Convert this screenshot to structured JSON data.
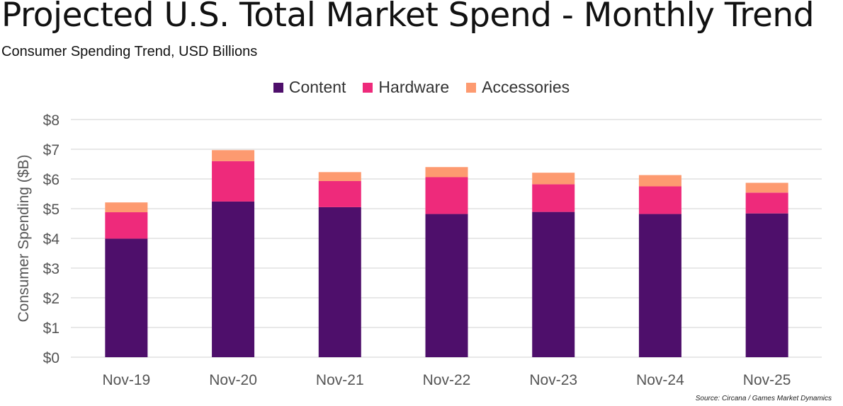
{
  "chart_data": {
    "type": "bar",
    "stacked": true,
    "title": "Projected U.S. Total Market Spend - Monthly Trend",
    "subtitle": "Consumer Spending Trend, USD Billions",
    "ylabel": "Consumer Spending ($B)",
    "xlabel": "",
    "ylim": [
      0,
      8
    ],
    "yticks": [
      "$0",
      "$1",
      "$2",
      "$3",
      "$4",
      "$5",
      "$6",
      "$7",
      "$8"
    ],
    "grid": true,
    "legend_position": "top",
    "categories": [
      "Nov-19",
      "Nov-20",
      "Nov-21",
      "Nov-22",
      "Nov-23",
      "Nov-24",
      "Nov-25"
    ],
    "series": [
      {
        "name": "Content",
        "color": "#4e0f6b",
        "values": [
          3.99,
          5.24,
          5.05,
          4.82,
          4.89,
          4.82,
          4.84
        ]
      },
      {
        "name": "Hardware",
        "color": "#ee2a7b",
        "values": [
          0.89,
          1.36,
          0.88,
          1.24,
          0.93,
          0.93,
          0.7
        ]
      },
      {
        "name": "Accessories",
        "color": "#fd9a70",
        "values": [
          0.33,
          0.37,
          0.3,
          0.34,
          0.39,
          0.38,
          0.33
        ]
      }
    ],
    "source": "Source: Circana / Games Market Dynamics"
  }
}
